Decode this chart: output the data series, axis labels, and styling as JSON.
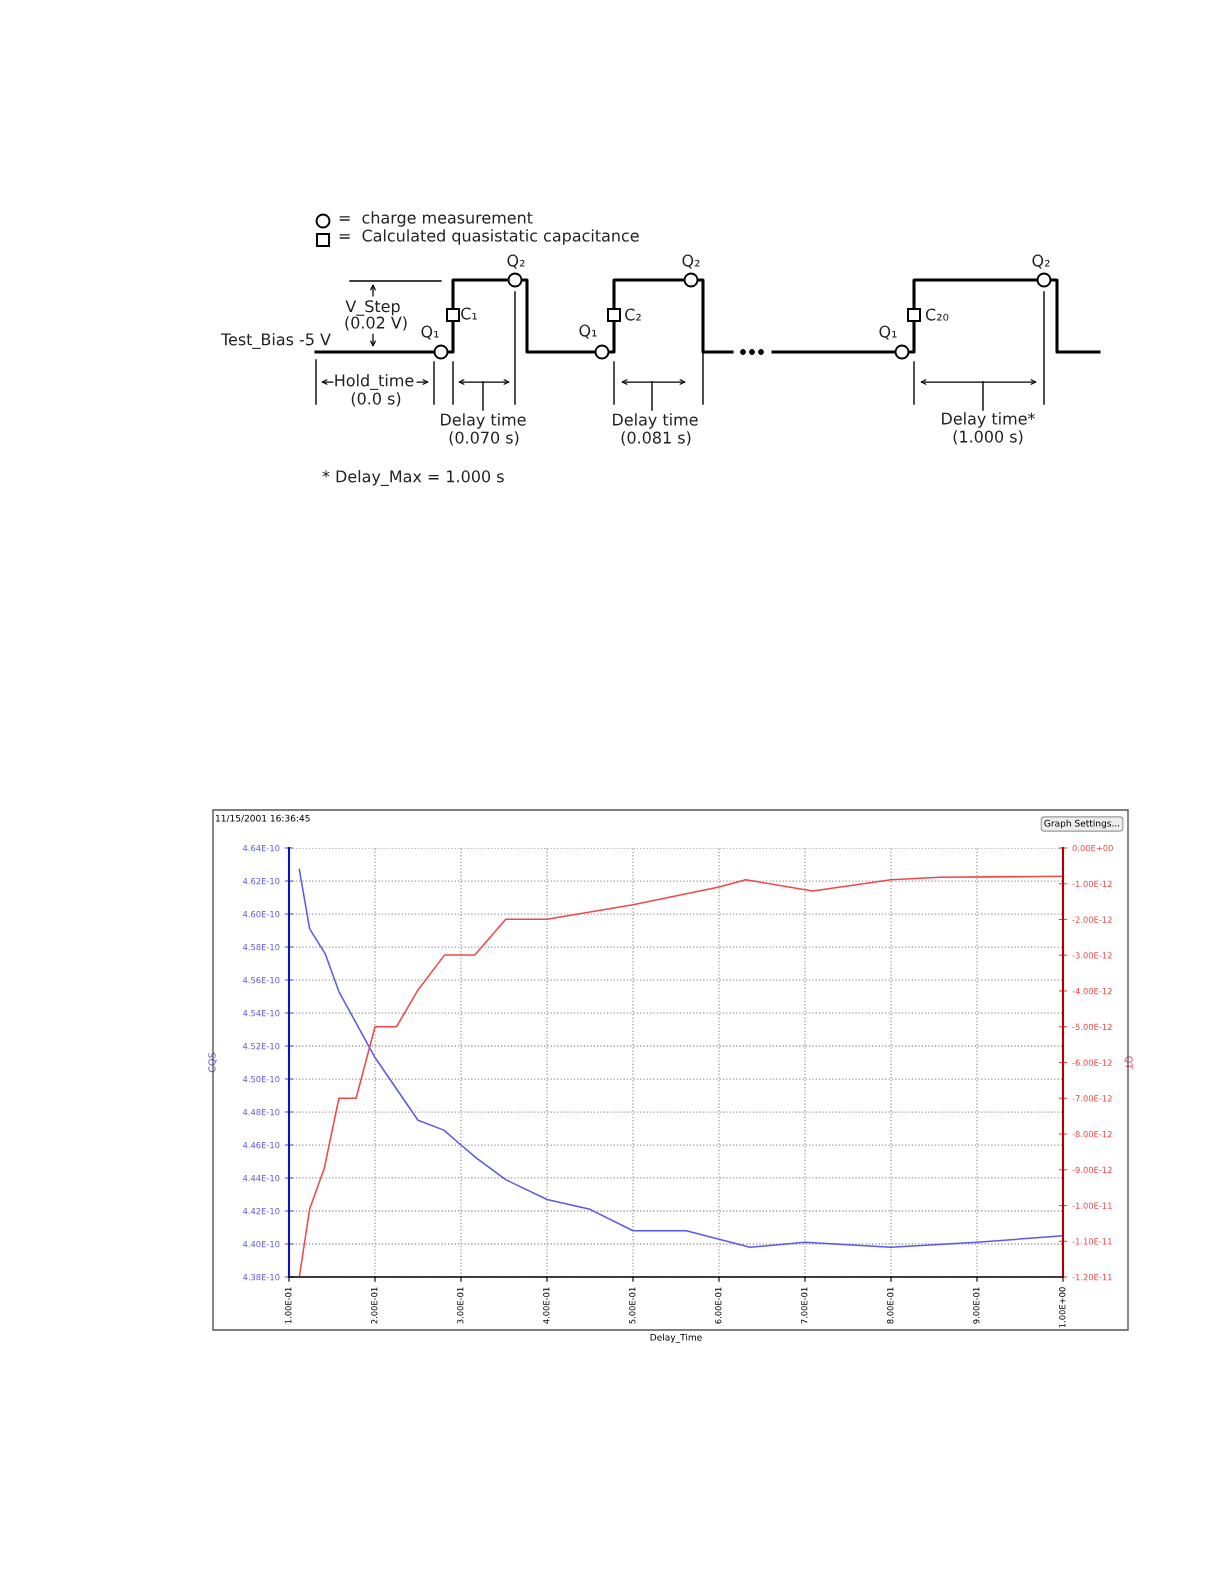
{
  "chart_data": [
    {
      "type": "other",
      "annotations": [
        "=  charge measurement",
        "=  Calculated quasistatic capacitance",
        "Test_Bias -5 V",
        "V_Step",
        "(0.02 V)",
        "Q₁",
        "C₁",
        "Q₂",
        "Q₁",
        "C₂",
        "Q₂",
        "Q₁",
        "C₂₀",
        "Q₂",
        "Hold_time",
        "(0.0 s)",
        "Delay time",
        "(0.070 s)",
        "Delay time",
        "(0.081 s)",
        "Delay time*",
        "(1.000 s)",
        "* Delay_Max = 1.000 s"
      ]
    },
    {
      "type": "line",
      "xlabel": "Delay_Time",
      "ylabel": "CQS",
      "y2label": "QT",
      "grid": true,
      "line_style": "solid",
      "marker": "none",
      "annotations": [
        "11/15/2001 16:36:45",
        "Graph Settings..."
      ],
      "xlim": [
        0.1,
        1.0
      ],
      "xticks": [
        {
          "value": 0.1,
          "label": "1.00E-01"
        },
        {
          "value": 0.2,
          "label": "2.00E-01"
        },
        {
          "value": 0.3,
          "label": "3.00E-01"
        },
        {
          "value": 0.4,
          "label": "4.00E-01"
        },
        {
          "value": 0.5,
          "label": "5.00E-01"
        },
        {
          "value": 0.6,
          "label": "6.00E-01"
        },
        {
          "value": 0.7,
          "label": "7.00E-01"
        },
        {
          "value": 0.8,
          "label": "8.00E-01"
        },
        {
          "value": 0.9,
          "label": "9.00E-01"
        },
        {
          "value": 1.0,
          "label": "1.00E+00"
        }
      ],
      "ylim": [
        4.38e-10,
        4.64e-10
      ],
      "yticks": [
        {
          "value": 4.38e-10,
          "label": "4.38E-10"
        },
        {
          "value": 4.4e-10,
          "label": "4.40E-10"
        },
        {
          "value": 4.42e-10,
          "label": "4.42E-10"
        },
        {
          "value": 4.44e-10,
          "label": "4.44E-10"
        },
        {
          "value": 4.46e-10,
          "label": "4.46E-10"
        },
        {
          "value": 4.48e-10,
          "label": "4.48E-10"
        },
        {
          "value": 4.5e-10,
          "label": "4.50E-10"
        },
        {
          "value": 4.52e-10,
          "label": "4.52E-10"
        },
        {
          "value": 4.54e-10,
          "label": "4.54E-10"
        },
        {
          "value": 4.56e-10,
          "label": "4.56E-10"
        },
        {
          "value": 4.58e-10,
          "label": "4.58E-10"
        },
        {
          "value": 4.6e-10,
          "label": "4.60E-10"
        },
        {
          "value": 4.62e-10,
          "label": "4.62E-10"
        },
        {
          "value": 4.64e-10,
          "label": "4.64E-10"
        }
      ],
      "y2lim": [
        -1.2e-11,
        0
      ],
      "y2ticks": [
        {
          "value": -1.2e-11,
          "label": "-1.20E-11"
        },
        {
          "value": -1.1e-11,
          "label": "-1.10E-11"
        },
        {
          "value": -1e-11,
          "label": "-1.00E-11"
        },
        {
          "value": -9e-12,
          "label": "-9.00E-12"
        },
        {
          "value": -8e-12,
          "label": "-8.00E-12"
        },
        {
          "value": -7e-12,
          "label": "-7.00E-12"
        },
        {
          "value": -6e-12,
          "label": "-6.00E-12"
        },
        {
          "value": -5e-12,
          "label": "-5.00E-12"
        },
        {
          "value": -4e-12,
          "label": "-4.00E-12"
        },
        {
          "value": -3e-12,
          "label": "-3.00E-12"
        },
        {
          "value": -2e-12,
          "label": "-2.00E-12"
        },
        {
          "value": -1e-12,
          "label": "-1.00E-12"
        },
        {
          "value": 0,
          "label": "0.00E+00"
        }
      ],
      "series": [
        {
          "color": "#5a5ae6",
          "x": [
            0.112,
            0.124,
            0.142,
            0.158,
            0.2,
            0.25,
            0.28,
            0.3,
            0.318,
            0.352,
            0.4,
            0.45,
            0.5,
            0.562,
            0.636,
            0.7,
            0.8,
            0.9,
            1.0
          ],
          "values": [
            4.627e-10,
            4.591e-10,
            4.576e-10,
            4.553e-10,
            4.513e-10,
            4.475e-10,
            4.469e-10,
            4.46e-10,
            4.452e-10,
            4.439e-10,
            4.427e-10,
            4.421e-10,
            4.408e-10,
            4.408e-10,
            4.398e-10,
            4.401e-10,
            4.398e-10,
            4.401e-10,
            4.405e-10
          ]
        },
        {
          "color": "#f04848",
          "axis": "y2",
          "x": [
            0.112,
            0.124,
            0.141,
            0.158,
            0.178,
            0.2,
            0.225,
            0.25,
            0.281,
            0.316,
            0.352,
            0.4,
            0.5,
            0.6,
            0.631,
            0.709,
            0.8,
            0.857,
            1.0
          ],
          "values": [
            -1.2e-11,
            -1.01e-11,
            -8.96e-12,
            -7e-12,
            -7e-12,
            -5e-12,
            -5e-12,
            -3.97e-12,
            -2.99e-12,
            -2.99e-12,
            -1.99e-12,
            -1.99e-12,
            -1.59e-12,
            -1.09e-12,
            -8.9e-13,
            -1.2e-12,
            -8.9e-13,
            -8.2e-13,
            -7.9e-13
          ]
        }
      ]
    }
  ]
}
